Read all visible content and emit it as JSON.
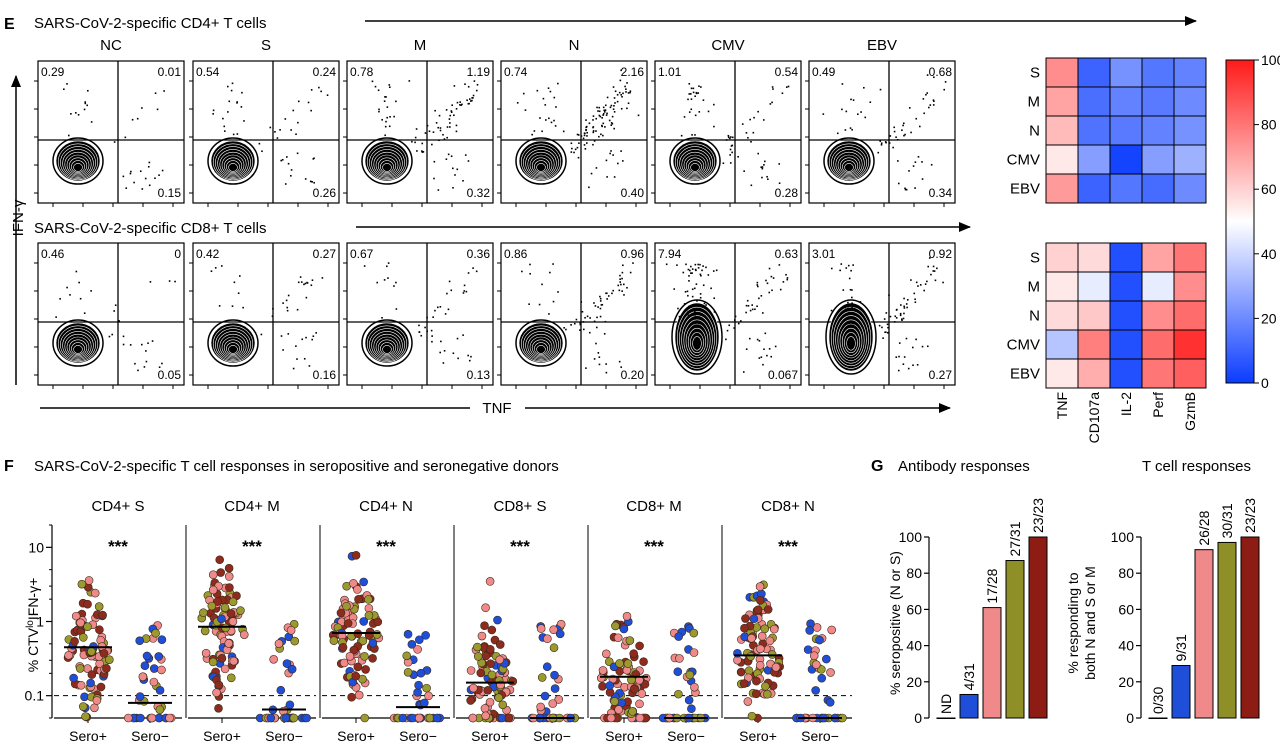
{
  "panel_e": {
    "letter": "E",
    "cd4_title": "SARS-CoV-2-specific CD4+ T cells",
    "cd8_title": "SARS-CoV-2-specific CD8+ T cells",
    "y_axis_label": "IFN-γ",
    "x_axis_label": "TNF",
    "columns": [
      "NC",
      "S",
      "M",
      "N",
      "CMV",
      "EBV"
    ],
    "cd4_quadrants": [
      {
        "tl": "0.29",
        "tr": "0.01",
        "br": "0.15"
      },
      {
        "tl": "0.54",
        "tr": "0.24",
        "br": "0.26"
      },
      {
        "tl": "0.78",
        "tr": "1.19",
        "br": "0.32"
      },
      {
        "tl": "0.74",
        "tr": "2.16",
        "br": "0.40"
      },
      {
        "tl": "1.01",
        "tr": "0.54",
        "br": "0.28"
      },
      {
        "tl": "0.49",
        "tr": "0.68",
        "br": "0.34"
      }
    ],
    "cd8_quadrants": [
      {
        "tl": "0.46",
        "tr": "0",
        "br": "0.05"
      },
      {
        "tl": "0.42",
        "tr": "0.27",
        "br": "0.16"
      },
      {
        "tl": "0.67",
        "tr": "0.36",
        "br": "0.13"
      },
      {
        "tl": "0.86",
        "tr": "0.96",
        "br": "0.20"
      },
      {
        "tl": "7.94",
        "tr": "0.63",
        "br": "0.067"
      },
      {
        "tl": "3.01",
        "tr": "0.92",
        "br": "0.27"
      }
    ]
  },
  "heatmap": {
    "rows": [
      "S",
      "M",
      "N",
      "CMV",
      "EBV"
    ],
    "columns": [
      "TNF",
      "CD107a",
      "IL-2",
      "Perf",
      "GzmB"
    ],
    "cd4_values": [
      [
        75,
        10,
        22,
        15,
        18
      ],
      [
        70,
        13,
        18,
        16,
        20
      ],
      [
        65,
        14,
        16,
        18,
        22
      ],
      [
        55,
        25,
        2,
        25,
        30
      ],
      [
        72,
        10,
        15,
        12,
        20
      ]
    ],
    "cd8_values": [
      [
        60,
        58,
        5,
        70,
        80
      ],
      [
        55,
        45,
        5,
        45,
        75
      ],
      [
        58,
        62,
        5,
        75,
        82
      ],
      [
        35,
        78,
        5,
        82,
        95
      ],
      [
        55,
        68,
        5,
        80,
        85
      ]
    ],
    "colorbar_ticks": [
      "100",
      "80",
      "60",
      "40",
      "20",
      "0"
    ],
    "colors": {
      "low": "#0b3cff",
      "mid": "#ffffff",
      "high": "#ff1a1a"
    }
  },
  "panel_f": {
    "letter": "F",
    "title": "SARS-CoV-2-specific T cell responses in seropositive and seronegative donors",
    "y_axis_label": "% CTV",
    "y_axis_label_sup": "lo",
    "y_axis_label_end": "IFN-γ+",
    "y_ticks": [
      "10",
      "1",
      "0.1"
    ],
    "groups": [
      "Sero+",
      "Sero−"
    ],
    "significance": "***",
    "panels": [
      {
        "title": "CD4+ S",
        "median_pos": 0.45,
        "median_neg": 0.08
      },
      {
        "title": "CD4+ M",
        "median_pos": 0.85,
        "median_neg": 0.065
      },
      {
        "title": "CD4+ N",
        "median_pos": 0.7,
        "median_neg": 0.07
      },
      {
        "title": "CD8+ S",
        "median_pos": 0.15,
        "median_neg": 0.05
      },
      {
        "title": "CD8+ M",
        "median_pos": 0.18,
        "median_neg": 0.05
      },
      {
        "title": "CD8+ N",
        "median_pos": 0.35,
        "median_neg": 0.05
      }
    ],
    "threshold": 0.1,
    "ylim": [
      0.05,
      20
    ],
    "dot_colors": [
      "#9a9a2e",
      "#8c2b1e",
      "#f08a8a",
      "#1f4fd8"
    ]
  },
  "panel_g": {
    "letter": "G",
    "antibody": {
      "title": "Antibody responses",
      "ylabel": "% seropositive (N or S)",
      "y_ticks": [
        "0",
        "20",
        "40",
        "60",
        "80",
        "100"
      ],
      "bars": [
        {
          "label": "ND",
          "value": 0,
          "color": "#ffffff"
        },
        {
          "label": "4/31",
          "value": 13,
          "color": "#1f4fd8"
        },
        {
          "label": "17/28",
          "value": 61,
          "color": "#f08a8a"
        },
        {
          "label": "27/31",
          "value": 87,
          "color": "#8f8f28"
        },
        {
          "label": "23/23",
          "value": 100,
          "color": "#8c1c14"
        }
      ]
    },
    "tcell": {
      "title": "T cell responses",
      "ylabel_line1": "% responding to",
      "ylabel_line2": "both N and S or M",
      "y_ticks": [
        "0",
        "20",
        "40",
        "60",
        "80",
        "100"
      ],
      "bars": [
        {
          "label": "0/30",
          "value": 0,
          "color": "#ffffff"
        },
        {
          "label": "9/31",
          "value": 29,
          "color": "#1f4fd8"
        },
        {
          "label": "26/28",
          "value": 93,
          "color": "#f08a8a"
        },
        {
          "label": "30/31",
          "value": 97,
          "color": "#8f8f28"
        },
        {
          "label": "23/23",
          "value": 100,
          "color": "#8c1c14"
        }
      ]
    }
  },
  "chart_data": [
    {
      "type": "heatmap",
      "title": "",
      "rows": [
        "S",
        "M",
        "N",
        "CMV",
        "EBV"
      ],
      "columns": [
        "TNF",
        "CD107a",
        "IL-2",
        "Perf",
        "GzmB"
      ],
      "values": [
        [
          75,
          10,
          22,
          15,
          18
        ],
        [
          70,
          13,
          18,
          16,
          20
        ],
        [
          65,
          14,
          16,
          18,
          22
        ],
        [
          55,
          25,
          2,
          25,
          30
        ],
        [
          72,
          10,
          15,
          12,
          20
        ]
      ],
      "range": [
        0,
        100
      ]
    },
    {
      "type": "heatmap",
      "title": "",
      "rows": [
        "S",
        "M",
        "N",
        "CMV",
        "EBV"
      ],
      "columns": [
        "TNF",
        "CD107a",
        "IL-2",
        "Perf",
        "GzmB"
      ],
      "values": [
        [
          60,
          58,
          5,
          70,
          80
        ],
        [
          55,
          45,
          5,
          45,
          75
        ],
        [
          58,
          62,
          5,
          75,
          82
        ],
        [
          35,
          78,
          5,
          82,
          95
        ],
        [
          55,
          68,
          5,
          80,
          85
        ]
      ],
      "range": [
        0,
        100
      ]
    },
    {
      "type": "scatter",
      "title": "SARS-CoV-2-specific T cell responses in seropositive and seronegative donors",
      "categories": [
        "CD4+ S",
        "CD4+ M",
        "CD4+ N",
        "CD8+ S",
        "CD8+ M",
        "CD8+ N"
      ],
      "series": [
        {
          "name": "Sero+",
          "values": [
            0.45,
            0.85,
            0.7,
            0.15,
            0.18,
            0.35
          ]
        },
        {
          "name": "Sero−",
          "values": [
            0.08,
            0.065,
            0.07,
            0.05,
            0.05,
            0.05
          ]
        }
      ],
      "yscale": "log",
      "ylim": [
        0.05,
        20
      ]
    },
    {
      "type": "bar",
      "title": "Antibody responses",
      "categories": [
        "ND",
        "4/31",
        "17/28",
        "27/31",
        "23/23"
      ],
      "values": [
        0,
        13,
        61,
        87,
        100
      ],
      "ylabel": "% seropositive (N or S)",
      "ylim": [
        0,
        100
      ]
    },
    {
      "type": "bar",
      "title": "T cell responses",
      "categories": [
        "0/30",
        "9/31",
        "26/28",
        "30/31",
        "23/23"
      ],
      "values": [
        0,
        29,
        93,
        97,
        100
      ],
      "ylabel": "% responding to both N and S or M",
      "ylim": [
        0,
        100
      ]
    }
  ]
}
